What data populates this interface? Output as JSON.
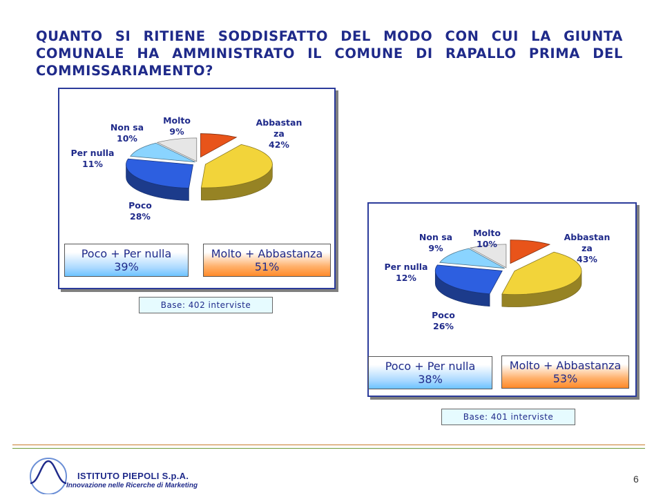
{
  "title": "QUANTO SI RITIENE SODDISFATTO DEL MODO CON CUI LA GIUNTA COMUNALE HA AMMINISTRATO IL COMUNE DI RAPALLO PRIMA DEL COMMISSARIAMENTO?",
  "chart_data": [
    {
      "type": "pie",
      "slices": [
        {
          "name_lines": [
            "Molto"
          ],
          "value": 9,
          "value_label": "9%",
          "color": "#e8541a"
        },
        {
          "name_lines": [
            "Abbastan",
            "za"
          ],
          "value": 42,
          "value_label": "42%",
          "color": "#f2d43a"
        },
        {
          "name_lines": [
            "Poco"
          ],
          "value": 28,
          "value_label": "28%",
          "color": "#2d5fe0"
        },
        {
          "name_lines": [
            "Per nulla"
          ],
          "value": 11,
          "value_label": "11%",
          "color": "#8ad4ff"
        },
        {
          "name_lines": [
            "Non sa"
          ],
          "value": 10,
          "value_label": "10%",
          "color": "#e6e6e6"
        }
      ],
      "summary_left": {
        "label": "Poco + Per nulla",
        "value": "39%"
      },
      "summary_right": {
        "label": "Molto + Abbastanza",
        "value": "51%"
      },
      "base": "Base: 402 interviste"
    },
    {
      "type": "pie",
      "slices": [
        {
          "name_lines": [
            "Molto"
          ],
          "value": 10,
          "value_label": "10%",
          "color": "#e8541a"
        },
        {
          "name_lines": [
            "Abbastan",
            "za"
          ],
          "value": 43,
          "value_label": "43%",
          "color": "#f2d43a"
        },
        {
          "name_lines": [
            "Poco"
          ],
          "value": 26,
          "value_label": "26%",
          "color": "#2d5fe0"
        },
        {
          "name_lines": [
            "Per nulla"
          ],
          "value": 12,
          "value_label": "12%",
          "color": "#8ad4ff"
        },
        {
          "name_lines": [
            "Non sa"
          ],
          "value": 9,
          "value_label": "9%",
          "color": "#e6e6e6"
        }
      ],
      "summary_left": {
        "label": "Poco + Per nulla",
        "value": "38%"
      },
      "summary_right": {
        "label": "Molto + Abbastanza",
        "value": "53%"
      },
      "base": "Base: 401 interviste"
    }
  ],
  "footer": {
    "company": "ISTITUTO PIEPOLI S.p.A.",
    "tagline": "Innovazione nelle Ricerche di Marketing",
    "page_number": "6"
  }
}
